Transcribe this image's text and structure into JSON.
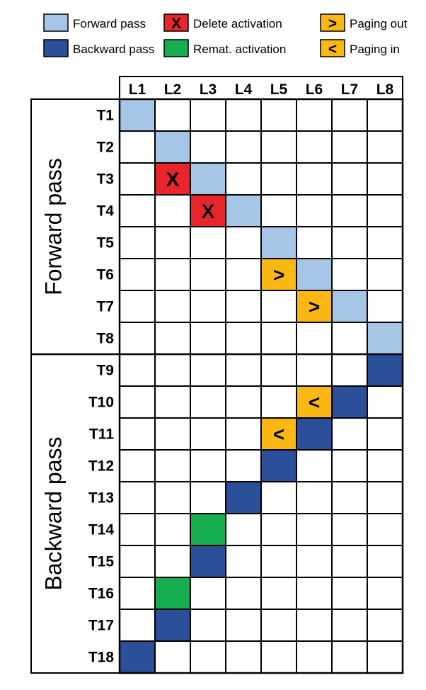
{
  "colors": {
    "forward": "#a6c6e8",
    "backward": "#2c4f9a",
    "delete": "#e8252a",
    "remat": "#16ae4f",
    "paging": "#fbb814",
    "border": "#000000"
  },
  "legend": [
    {
      "key": "forward",
      "symbol": "",
      "label": "Forward pass"
    },
    {
      "key": "backward",
      "symbol": "",
      "label": "Backward pass"
    },
    {
      "key": "delete",
      "symbol": "X",
      "label": "Delete activation"
    },
    {
      "key": "remat",
      "symbol": "",
      "label": "Remat. activation"
    },
    {
      "key": "paging",
      "symbol": ">",
      "label": "Paging out"
    },
    {
      "key": "paging",
      "symbol": "<",
      "label": "Paging in"
    }
  ],
  "columns": [
    "L1",
    "L2",
    "L3",
    "L4",
    "L5",
    "L6",
    "L7",
    "L8"
  ],
  "rows": [
    "T1",
    "T2",
    "T3",
    "T4",
    "T5",
    "T6",
    "T7",
    "T8",
    "T9",
    "T10",
    "T11",
    "T12",
    "T13",
    "T14",
    "T15",
    "T16",
    "T17",
    "T18"
  ],
  "groups": [
    {
      "label": "Forward pass",
      "row_count": 8
    },
    {
      "label": "Backward pass",
      "row_count": 10
    }
  ],
  "cells": [
    {
      "row": "T1",
      "col": "L1",
      "type": "forward",
      "symbol": ""
    },
    {
      "row": "T2",
      "col": "L2",
      "type": "forward",
      "symbol": ""
    },
    {
      "row": "T3",
      "col": "L2",
      "type": "delete",
      "symbol": "X"
    },
    {
      "row": "T3",
      "col": "L3",
      "type": "forward",
      "symbol": ""
    },
    {
      "row": "T4",
      "col": "L3",
      "type": "delete",
      "symbol": "X"
    },
    {
      "row": "T4",
      "col": "L4",
      "type": "forward",
      "symbol": ""
    },
    {
      "row": "T5",
      "col": "L5",
      "type": "forward",
      "symbol": ""
    },
    {
      "row": "T6",
      "col": "L5",
      "type": "paging",
      "symbol": ">"
    },
    {
      "row": "T6",
      "col": "L6",
      "type": "forward",
      "symbol": ""
    },
    {
      "row": "T7",
      "col": "L6",
      "type": "paging",
      "symbol": ">"
    },
    {
      "row": "T7",
      "col": "L7",
      "type": "forward",
      "symbol": ""
    },
    {
      "row": "T8",
      "col": "L8",
      "type": "forward",
      "symbol": ""
    },
    {
      "row": "T9",
      "col": "L8",
      "type": "backward",
      "symbol": ""
    },
    {
      "row": "T10",
      "col": "L6",
      "type": "paging",
      "symbol": "<"
    },
    {
      "row": "T10",
      "col": "L7",
      "type": "backward",
      "symbol": ""
    },
    {
      "row": "T11",
      "col": "L5",
      "type": "paging",
      "symbol": "<"
    },
    {
      "row": "T11",
      "col": "L6",
      "type": "backward",
      "symbol": ""
    },
    {
      "row": "T12",
      "col": "L5",
      "type": "backward",
      "symbol": ""
    },
    {
      "row": "T13",
      "col": "L4",
      "type": "backward",
      "symbol": ""
    },
    {
      "row": "T14",
      "col": "L3",
      "type": "remat",
      "symbol": ""
    },
    {
      "row": "T15",
      "col": "L3",
      "type": "backward",
      "symbol": ""
    },
    {
      "row": "T16",
      "col": "L2",
      "type": "remat",
      "symbol": ""
    },
    {
      "row": "T17",
      "col": "L2",
      "type": "backward",
      "symbol": ""
    },
    {
      "row": "T18",
      "col": "L1",
      "type": "backward",
      "symbol": ""
    }
  ]
}
